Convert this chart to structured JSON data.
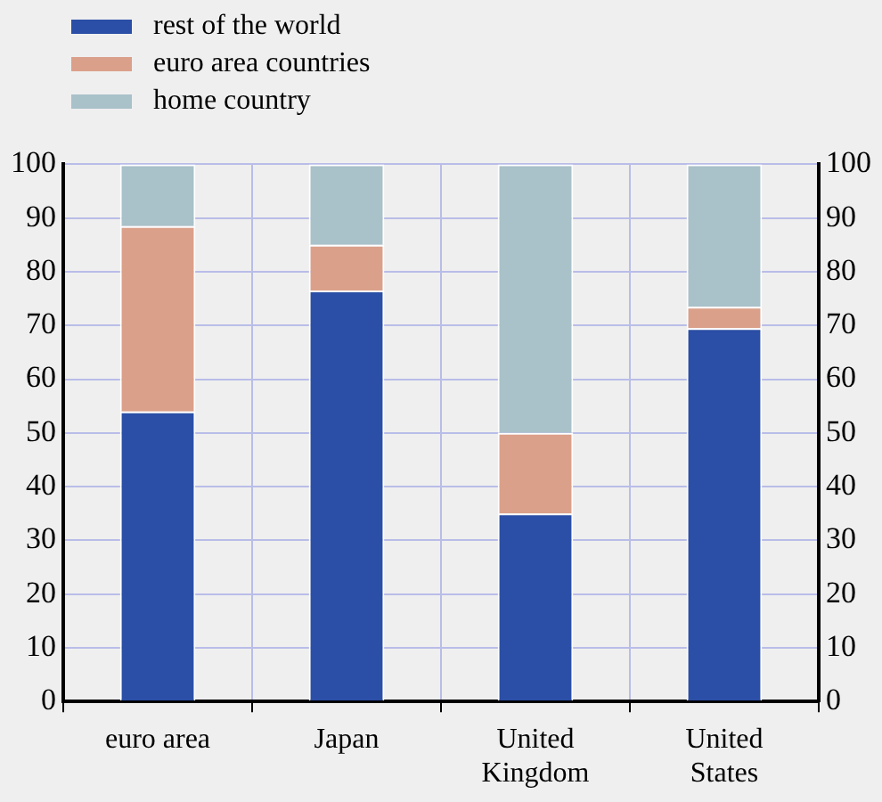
{
  "chart_data": {
    "type": "bar",
    "stacked": true,
    "categories": [
      "euro area",
      "Japan",
      "United Kingdom",
      "United States"
    ],
    "series": [
      {
        "name": "rest of the world",
        "color": "#2b4fa6",
        "values": [
          54,
          76.5,
          35,
          69.5
        ]
      },
      {
        "name": "euro area countries",
        "color": "#dba08a",
        "values": [
          34.5,
          8.5,
          15,
          4
        ]
      },
      {
        "name": "home country",
        "color": "#a9c1c9",
        "values": [
          11.5,
          15,
          50,
          26.5
        ]
      }
    ],
    "ylim": [
      0,
      100
    ],
    "yticks": [
      0,
      10,
      20,
      30,
      40,
      50,
      60,
      70,
      80,
      90,
      100
    ],
    "y2lim": [
      0,
      100
    ],
    "y2ticks": [
      0,
      10,
      20,
      30,
      40,
      50,
      60,
      70,
      80,
      90,
      100
    ],
    "grid": true,
    "legend": "top left"
  }
}
